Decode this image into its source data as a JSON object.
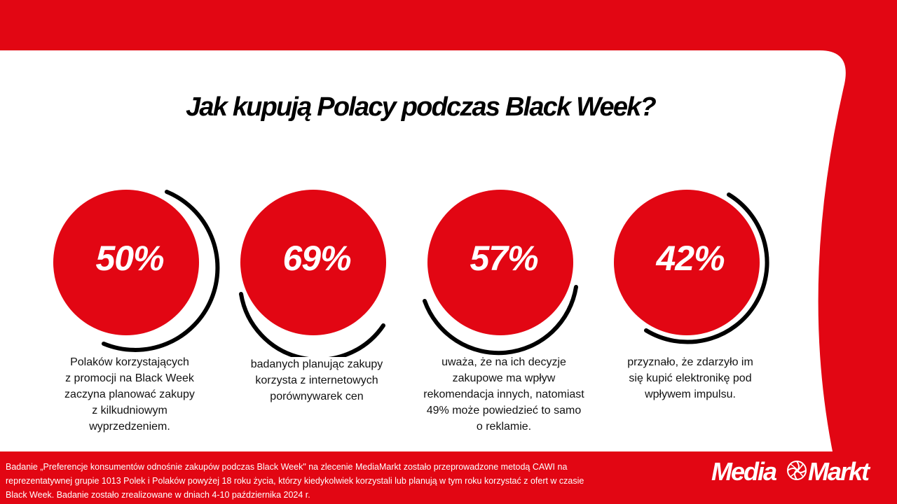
{
  "title": "Jak kupują Polacy podczas Black Week?",
  "colors": {
    "brand_red": "#e20613",
    "ring": "#000000",
    "panel": "#ffffff"
  },
  "stats": [
    {
      "value": "50%",
      "percent": 50,
      "description": "Polaków korzystających\nz promocji na Black Week\nzaczyna planować zakupy\nz kilkudniowym\nwyprzedzeniem."
    },
    {
      "value": "69%",
      "percent": 69,
      "description": "badanych planując zakupy\nkorzysta z internetowych\nporównywarek cen"
    },
    {
      "value": "57%",
      "percent": 57,
      "description": "uważa, że na ich decyzje\nzakupowe ma wpływ\nrekomendacja innych, natomiast\n49% może powiedzieć to samo\no reklamie."
    },
    {
      "value": "42%",
      "percent": 42,
      "description": "przyznało, że zdarzyło im\nsię kupić elektronikę pod\nwpływem impulsu."
    }
  ],
  "footnote": "Badanie „Preferencje konsumentów odnośnie zakupów podczas Black Week\" na zlecenie MediaMarkt zostało przeprowadzone metodą CAWI na\nreprezentatywnej grupie 1013 Polek i Polaków powyżej 18 roku życia, którzy kiedykolwiek korzystali lub planują w tym roku korzystać z ofert w czasie\nBlack Week. Badanie zostało zrealizowane w dniach 4-10 października 2024 r.",
  "logo": {
    "text": "MediaMarkt",
    "icon": "mediamarkt-swirl-icon"
  }
}
